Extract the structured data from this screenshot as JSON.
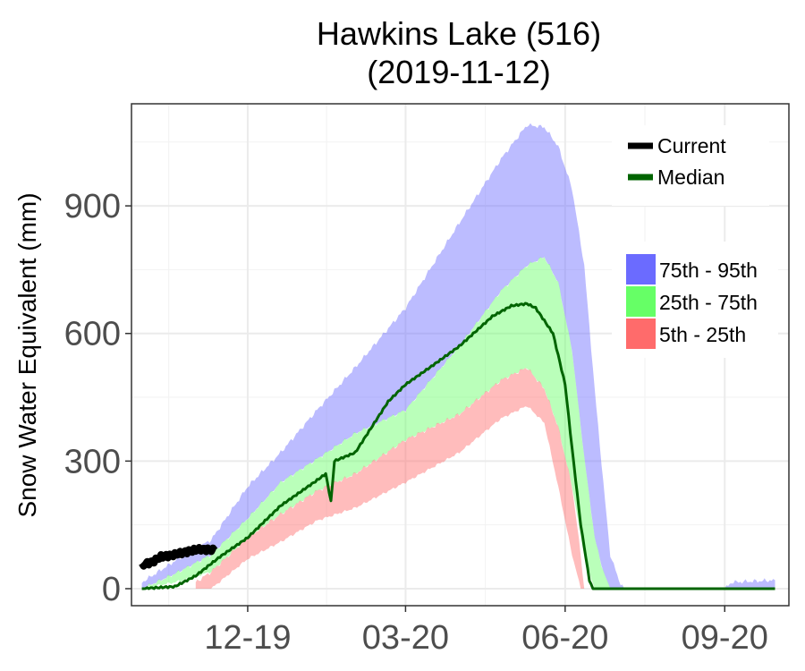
{
  "chart_data": {
    "type": "area",
    "title": "Hawkins Lake (516)",
    "subtitle": "(2019-11-12)",
    "xlabel": "",
    "ylabel": "Snow Water Equivalent (mm)",
    "x_start": "2019-10-01",
    "x_end": "2020-09-30",
    "xlim": [
      "2019-09-25",
      "2020-10-08"
    ],
    "ylim": [
      -40,
      1140
    ],
    "y_ticks": [
      0,
      300,
      600,
      900
    ],
    "y_tick_labels": [
      "0",
      "300",
      "600",
      "900"
    ],
    "x_ticks": [
      "2019-12-01",
      "2020-03-01",
      "2020-06-01",
      "2020-09-01"
    ],
    "x_tick_labels": [
      "12-19",
      "03-20",
      "06-20",
      "09-20"
    ],
    "grid": true,
    "legend_placement": "top-right",
    "colors": {
      "current": "#000000",
      "median": "#006400",
      "p75_95": "#6b6bff",
      "p25_75": "#66ff66",
      "p5_25": "#ff6b6b"
    },
    "series": [
      {
        "name": "75th - 95th",
        "kind": "band",
        "lower_anchor": "p75",
        "points": [
          [
            "2019-10-01",
            0,
            15
          ],
          [
            "2019-10-20",
            35,
            65
          ],
          [
            "2019-11-10",
            80,
            115
          ],
          [
            "2019-12-01",
            165,
            240
          ],
          [
            "2019-12-20",
            250,
            320
          ],
          [
            "2020-01-10",
            305,
            420
          ],
          [
            "2020-02-01",
            365,
            520
          ],
          [
            "2020-03-01",
            420,
            660
          ],
          [
            "2020-04-01",
            570,
            860
          ],
          [
            "2020-04-25",
            700,
            1010
          ],
          [
            "2020-05-10",
            760,
            1090
          ],
          [
            "2020-05-20",
            780,
            1085
          ],
          [
            "2020-05-28",
            720,
            1040
          ],
          [
            "2020-06-05",
            560,
            940
          ],
          [
            "2020-06-12",
            310,
            760
          ],
          [
            "2020-06-18",
            120,
            470
          ],
          [
            "2020-06-23",
            40,
            250
          ],
          [
            "2020-06-27",
            0,
            80
          ],
          [
            "2020-07-02",
            0,
            20
          ],
          [
            "2020-07-05",
            0,
            0
          ],
          [
            "2020-09-01",
            0,
            0
          ],
          [
            "2020-09-05",
            0,
            15
          ],
          [
            "2020-09-30",
            0,
            20
          ]
        ]
      },
      {
        "name": "25th - 75th",
        "kind": "band",
        "points": [
          [
            "2019-10-01",
            0,
            0
          ],
          [
            "2019-10-20",
            15,
            35
          ],
          [
            "2019-11-10",
            40,
            80
          ],
          [
            "2019-12-01",
            120,
            165
          ],
          [
            "2019-12-20",
            175,
            250
          ],
          [
            "2020-01-10",
            230,
            305
          ],
          [
            "2020-02-01",
            270,
            365
          ],
          [
            "2020-03-01",
            350,
            420
          ],
          [
            "2020-04-01",
            410,
            570
          ],
          [
            "2020-04-25",
            490,
            700
          ],
          [
            "2020-05-10",
            520,
            760
          ],
          [
            "2020-05-20",
            470,
            780
          ],
          [
            "2020-05-28",
            380,
            720
          ],
          [
            "2020-06-05",
            240,
            560
          ],
          [
            "2020-06-12",
            80,
            310
          ],
          [
            "2020-06-18",
            0,
            120
          ],
          [
            "2020-06-23",
            0,
            40
          ],
          [
            "2020-06-27",
            0,
            0
          ],
          [
            "2020-09-30",
            0,
            0
          ]
        ]
      },
      {
        "name": "5th - 25th",
        "kind": "band",
        "points": [
          [
            "2019-11-01",
            0,
            15
          ],
          [
            "2019-11-10",
            0,
            40
          ],
          [
            "2019-12-01",
            70,
            120
          ],
          [
            "2019-12-20",
            110,
            175
          ],
          [
            "2020-01-10",
            160,
            230
          ],
          [
            "2020-02-01",
            190,
            270
          ],
          [
            "2020-03-01",
            250,
            350
          ],
          [
            "2020-04-01",
            320,
            410
          ],
          [
            "2020-04-25",
            400,
            490
          ],
          [
            "2020-05-10",
            430,
            520
          ],
          [
            "2020-05-20",
            390,
            470
          ],
          [
            "2020-05-28",
            240,
            380
          ],
          [
            "2020-06-05",
            80,
            240
          ],
          [
            "2020-06-10",
            0,
            80
          ],
          [
            "2020-06-12",
            0,
            0
          ]
        ]
      },
      {
        "name": "Median",
        "kind": "line",
        "points": [
          [
            "2019-10-01",
            0
          ],
          [
            "2019-10-20",
            5
          ],
          [
            "2019-11-01",
            30
          ],
          [
            "2019-11-15",
            75
          ],
          [
            "2019-12-01",
            120
          ],
          [
            "2019-12-20",
            195
          ],
          [
            "2020-01-10",
            255
          ],
          [
            "2020-01-15",
            270
          ],
          [
            "2020-01-18",
            205
          ],
          [
            "2020-01-20",
            300
          ],
          [
            "2020-02-01",
            320
          ],
          [
            "2020-02-20",
            440
          ],
          [
            "2020-03-01",
            480
          ],
          [
            "2020-03-15",
            520
          ],
          [
            "2020-04-01",
            570
          ],
          [
            "2020-04-20",
            640
          ],
          [
            "2020-05-01",
            665
          ],
          [
            "2020-05-10",
            670
          ],
          [
            "2020-05-15",
            660
          ],
          [
            "2020-05-25",
            600
          ],
          [
            "2020-06-01",
            480
          ],
          [
            "2020-06-05",
            330
          ],
          [
            "2020-06-10",
            150
          ],
          [
            "2020-06-15",
            20
          ],
          [
            "2020-06-17",
            0
          ],
          [
            "2020-09-30",
            0
          ]
        ]
      },
      {
        "name": "Current",
        "kind": "line",
        "points": [
          [
            "2019-10-01",
            55
          ],
          [
            "2019-10-08",
            65
          ],
          [
            "2019-10-12",
            75
          ],
          [
            "2019-10-20",
            80
          ],
          [
            "2019-10-28",
            88
          ],
          [
            "2019-11-04",
            93
          ],
          [
            "2019-11-12",
            90
          ]
        ]
      }
    ],
    "legend": {
      "lines": [
        {
          "label": "Current",
          "color_key": "current"
        },
        {
          "label": "Median",
          "color_key": "median"
        }
      ],
      "bands": [
        {
          "label": "75th - 95th",
          "color_key": "p75_95"
        },
        {
          "label": "25th - 75th",
          "color_key": "p25_75"
        },
        {
          "label": "5th - 25th",
          "color_key": "p5_25"
        }
      ]
    }
  }
}
